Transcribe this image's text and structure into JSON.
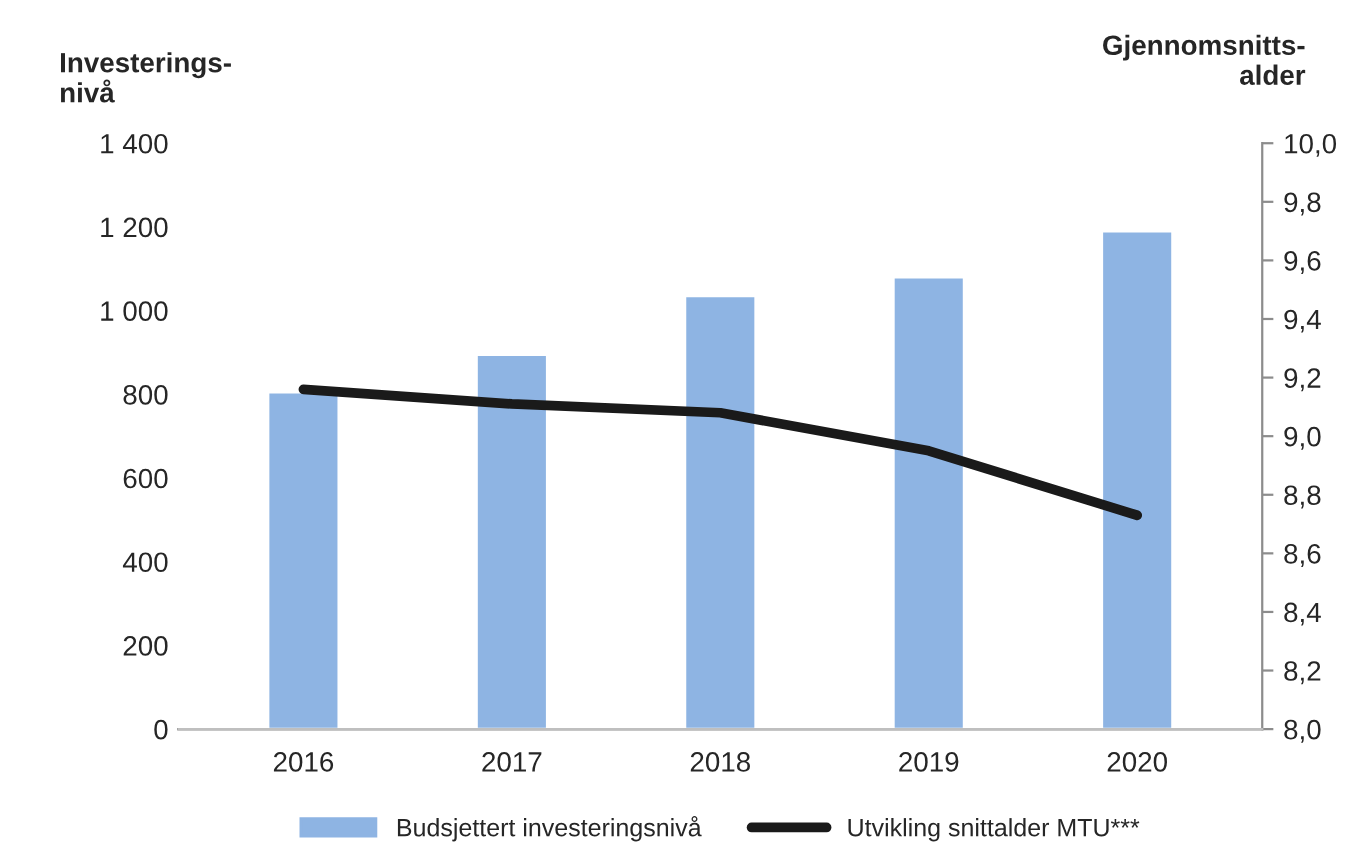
{
  "chart_data": {
    "type": "bar",
    "ylabel": "Investerings-\nnivå",
    "y2label": "Gjennomsnitts-\nalder",
    "categories": [
      "2016",
      "2017",
      "2018",
      "2019",
      "2020"
    ],
    "series": [
      {
        "name": "Budsjettert investeringsnivå",
        "color": "#8eb4e3",
        "values": [
          805,
          895,
          1035,
          1080,
          1190
        ]
      },
      {
        "name": "Utvikling snittalder MTU***",
        "type": "line",
        "color": "#1a1a1a",
        "axis": "y2",
        "values": [
          9.16,
          9.11,
          9.08,
          8.95,
          8.73
        ]
      }
    ],
    "ylim": [
      0,
      1400
    ],
    "yticks": [
      0,
      200,
      400,
      600,
      800,
      {
        "value": 1000,
        "label": "1 000"
      },
      {
        "value": 1200,
        "label": "1 200"
      },
      {
        "value": 1400,
        "label": "1 400"
      }
    ],
    "y2lim": [
      8.0,
      10.0
    ],
    "y2ticks": [
      {
        "value": 8.0,
        "label": "8,0"
      },
      {
        "value": 8.2,
        "label": "8,2"
      },
      {
        "value": 8.4,
        "label": "8,4"
      },
      {
        "value": 8.6,
        "label": "8,6"
      },
      {
        "value": 8.8,
        "label": "8,8"
      },
      {
        "value": 9.0,
        "label": "9,0"
      },
      {
        "value": 9.2,
        "label": "9,2"
      },
      {
        "value": 9.4,
        "label": "9,4"
      },
      {
        "value": 9.6,
        "label": "9,6"
      },
      {
        "value": 9.8,
        "label": "9,8"
      },
      {
        "value": 10.0,
        "label": "10,0"
      }
    ],
    "grid": false,
    "legend": "bottom",
    "line_style": "solid",
    "marker": "none"
  }
}
